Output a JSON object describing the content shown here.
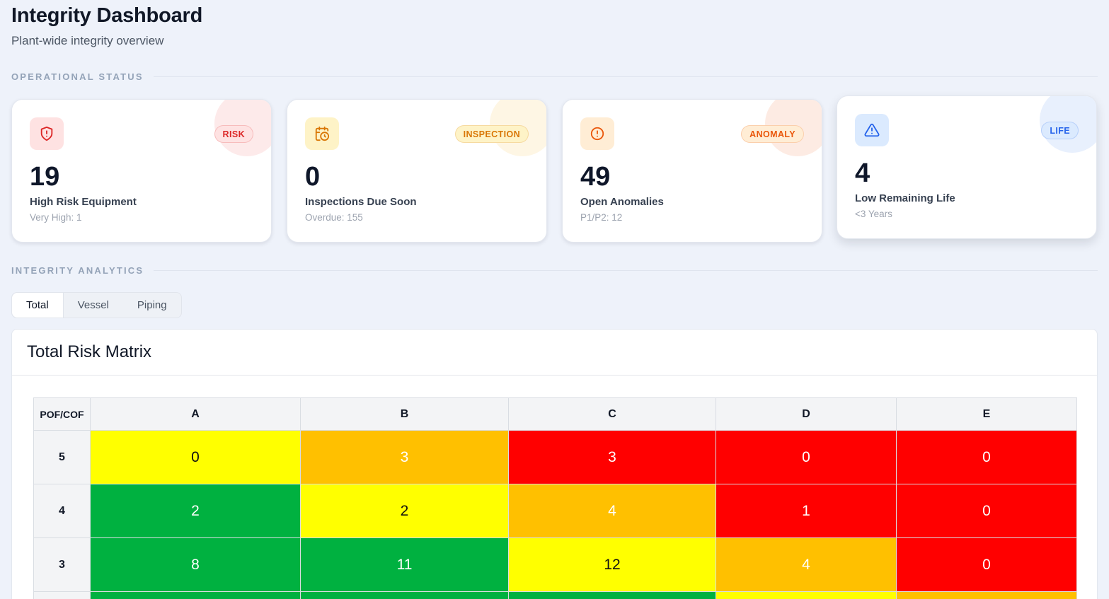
{
  "header": {
    "title": "Integrity Dashboard",
    "subtitle": "Plant-wide integrity overview"
  },
  "sections": {
    "operational": "OPERATIONAL STATUS",
    "analytics": "INTEGRITY ANALYTICS"
  },
  "cards": [
    {
      "icon": "shield-alert-icon",
      "badge": "RISK",
      "value": "19",
      "title": "High Risk Equipment",
      "sub": "Very High: 1",
      "accent": "#dc2626",
      "tint": "#fee2e2",
      "blob": "#fdeaea"
    },
    {
      "icon": "calendar-clock-icon",
      "badge": "INSPECTION",
      "value": "0",
      "title": "Inspections Due Soon",
      "sub": "Overdue: 155",
      "accent": "#d97706",
      "tint": "#fef3c7",
      "blob": "#fef6e4"
    },
    {
      "icon": "alert-circle-icon",
      "badge": "ANOMALY",
      "value": "49",
      "title": "Open Anomalies",
      "sub": "P1/P2: 12",
      "accent": "#ea580c",
      "tint": "#ffedd5",
      "blob": "#fdebe3"
    },
    {
      "icon": "warning-triangle-icon",
      "badge": "LIFE",
      "value": "4",
      "title": "Low Remaining Life",
      "sub": "<3 Years",
      "accent": "#2563eb",
      "tint": "#dbeafe",
      "blob": "#e8f0fd"
    }
  ],
  "tabs": [
    "Total",
    "Vessel",
    "Piping"
  ],
  "active_tab": 0,
  "matrix": {
    "title": "Total Risk Matrix",
    "corner": "POF/COF",
    "columns": [
      "A",
      "B",
      "C",
      "D",
      "E"
    ],
    "rows": [
      {
        "label": "5",
        "cells": [
          {
            "v": "0",
            "c": "yellow"
          },
          {
            "v": "3",
            "c": "orange"
          },
          {
            "v": "3",
            "c": "red"
          },
          {
            "v": "0",
            "c": "red"
          },
          {
            "v": "0",
            "c": "red"
          }
        ]
      },
      {
        "label": "4",
        "cells": [
          {
            "v": "2",
            "c": "green"
          },
          {
            "v": "2",
            "c": "yellow"
          },
          {
            "v": "4",
            "c": "orange"
          },
          {
            "v": "1",
            "c": "red"
          },
          {
            "v": "0",
            "c": "red"
          }
        ]
      },
      {
        "label": "3",
        "cells": [
          {
            "v": "8",
            "c": "green"
          },
          {
            "v": "11",
            "c": "green"
          },
          {
            "v": "12",
            "c": "yellow"
          },
          {
            "v": "4",
            "c": "orange"
          },
          {
            "v": "0",
            "c": "red"
          }
        ]
      },
      {
        "label": "",
        "cells": [
          {
            "v": "",
            "c": "green"
          },
          {
            "v": "",
            "c": "green"
          },
          {
            "v": "",
            "c": "green"
          },
          {
            "v": "",
            "c": "yellow"
          },
          {
            "v": "",
            "c": "orange"
          }
        ]
      }
    ],
    "colors": {
      "green": "#00b140",
      "yellow": "#ffff00",
      "orange": "#ffc000",
      "red": "#ff0000"
    },
    "text_colors": {
      "green": "#ffffff",
      "yellow": "#111111",
      "orange": "#ffffff",
      "red": "#ffffff"
    }
  }
}
